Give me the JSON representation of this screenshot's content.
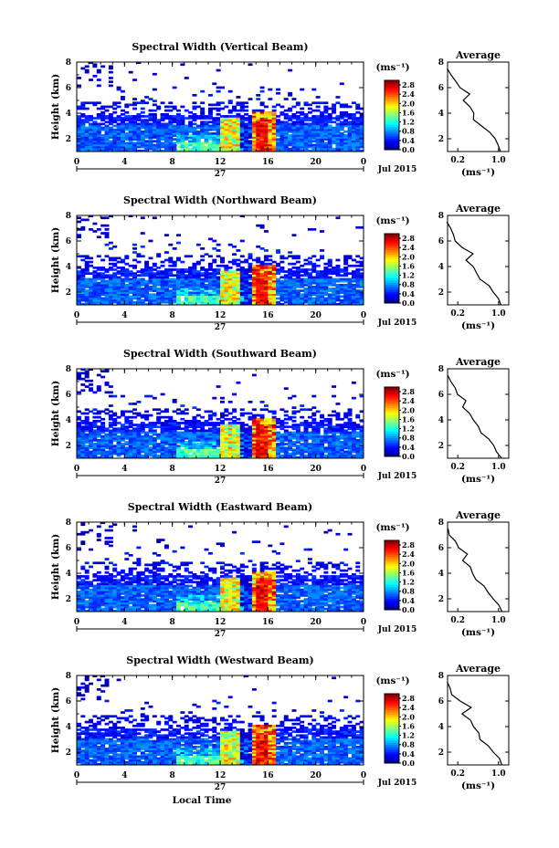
{
  "chart_data": [
    {
      "type": "heatmap",
      "title": "Spectral Width (Vertical Beam)",
      "ylabel": "Height (km)",
      "xlim": [
        0,
        24
      ],
      "ylim": [
        1,
        8
      ],
      "x_ticks": [
        "0",
        "4",
        "8",
        "12",
        "16",
        "20",
        "0"
      ],
      "y_ticks": [
        "2",
        "4",
        "6",
        "8"
      ],
      "date_label": "27",
      "month_label": "Jul 2015",
      "colorbar": {
        "unit": "(ms⁻¹)",
        "ticks": [
          "0.0",
          "0.4",
          "0.8",
          "1.2",
          "1.6",
          "2.0",
          "2.4",
          "2.8"
        ],
        "range": [
          0,
          3
        ]
      },
      "profile": {
        "title": "Average",
        "xlabel": "(ms⁻¹)",
        "x_ticks": [
          "0.2",
          "1.0"
        ],
        "y_ticks": [
          "2",
          "4",
          "6",
          "8"
        ],
        "xlim": [
          0,
          1.2
        ],
        "ylim": [
          1,
          8
        ],
        "heights": [
          1.0,
          1.5,
          2.0,
          2.5,
          3.0,
          3.5,
          4.0,
          4.5,
          5.0,
          5.5,
          6.0,
          6.5,
          7.0,
          7.5
        ],
        "values": [
          1.05,
          1.0,
          0.95,
          0.85,
          0.65,
          0.5,
          0.5,
          0.45,
          0.3,
          0.45,
          0.25,
          0.15,
          0.05,
          0.0
        ]
      }
    },
    {
      "type": "heatmap",
      "title": "Spectral Width (Northward Beam)",
      "ylabel": "Height (km)",
      "xlim": [
        0,
        24
      ],
      "ylim": [
        1,
        8
      ],
      "x_ticks": [
        "0",
        "4",
        "8",
        "12",
        "16",
        "20",
        "0"
      ],
      "y_ticks": [
        "2",
        "4",
        "6",
        "8"
      ],
      "date_label": "27",
      "month_label": "Jul 2015",
      "colorbar": {
        "unit": "(ms⁻¹)",
        "ticks": [
          "0.0",
          "0.4",
          "0.8",
          "1.2",
          "1.6",
          "2.0",
          "2.4",
          "2.8"
        ],
        "range": [
          0,
          3
        ]
      },
      "profile": {
        "title": "Average",
        "xlabel": "(ms⁻¹)",
        "x_ticks": [
          "0.2",
          "1.0"
        ],
        "y_ticks": [
          "2",
          "4",
          "6",
          "8"
        ],
        "xlim": [
          0,
          1.2
        ],
        "ylim": [
          1,
          8
        ],
        "heights": [
          1.0,
          1.5,
          2.0,
          2.5,
          3.0,
          3.5,
          4.0,
          4.5,
          5.0,
          5.5,
          6.0,
          6.5,
          7.0,
          7.5
        ],
        "values": [
          1.05,
          1.0,
          0.9,
          0.8,
          0.65,
          0.55,
          0.5,
          0.35,
          0.5,
          0.3,
          0.15,
          0.1,
          0.05,
          0.0
        ]
      }
    },
    {
      "type": "heatmap",
      "title": "Spectral Width (Southward Beam)",
      "ylabel": "Height (km)",
      "xlim": [
        0,
        24
      ],
      "ylim": [
        1,
        8
      ],
      "x_ticks": [
        "0",
        "4",
        "8",
        "12",
        "16",
        "20",
        "0"
      ],
      "y_ticks": [
        "2",
        "4",
        "6",
        "8"
      ],
      "date_label": "27",
      "month_label": "Jul 2015",
      "colorbar": {
        "unit": "(ms⁻¹)",
        "ticks": [
          "0.0",
          "0.4",
          "0.8",
          "1.2",
          "1.6",
          "2.0",
          "2.4",
          "2.8"
        ],
        "range": [
          0,
          3
        ]
      },
      "profile": {
        "title": "Average",
        "xlabel": "(ms⁻¹)",
        "x_ticks": [
          "0.2",
          "1.0"
        ],
        "y_ticks": [
          "2",
          "4",
          "6",
          "8"
        ],
        "xlim": [
          0,
          1.2
        ],
        "ylim": [
          1,
          8
        ],
        "heights": [
          1.0,
          1.5,
          2.0,
          2.5,
          3.0,
          3.5,
          4.0,
          4.5,
          5.0,
          5.5,
          6.0,
          6.5,
          7.0,
          7.5
        ],
        "values": [
          1.05,
          0.95,
          0.9,
          0.8,
          0.65,
          0.6,
          0.5,
          0.45,
          0.3,
          0.35,
          0.2,
          0.15,
          0.05,
          0.0
        ]
      }
    },
    {
      "type": "heatmap",
      "title": "Spectral Width (Eastward Beam)",
      "ylabel": "Height (km)",
      "xlim": [
        0,
        24
      ],
      "ylim": [
        1,
        8
      ],
      "x_ticks": [
        "0",
        "4",
        "8",
        "12",
        "16",
        "20",
        "0"
      ],
      "y_ticks": [
        "2",
        "4",
        "6",
        "8"
      ],
      "date_label": "27",
      "month_label": "Jul 2015",
      "colorbar": {
        "unit": "(ms⁻¹)",
        "ticks": [
          "0.0",
          "0.4",
          "0.8",
          "1.2",
          "1.6",
          "2.0",
          "2.4",
          "2.8"
        ],
        "range": [
          0,
          3
        ]
      },
      "profile": {
        "title": "Average",
        "xlabel": "(ms⁻¹)",
        "x_ticks": [
          "0.2",
          "1.0"
        ],
        "y_ticks": [
          "2",
          "4",
          "6",
          "8"
        ],
        "xlim": [
          0,
          1.2
        ],
        "ylim": [
          1,
          8
        ],
        "heights": [
          1.0,
          1.5,
          2.0,
          2.5,
          3.0,
          3.5,
          4.0,
          4.5,
          5.0,
          5.5,
          6.0,
          6.5,
          7.0,
          7.5
        ],
        "values": [
          1.05,
          1.0,
          0.9,
          0.8,
          0.7,
          0.55,
          0.5,
          0.45,
          0.3,
          0.4,
          0.2,
          0.15,
          0.05,
          0.0
        ]
      }
    },
    {
      "type": "heatmap",
      "title": "Spectral Width (Westward Beam)",
      "ylabel": "Height (km)",
      "xlabel": "Local Time",
      "xlim": [
        0,
        24
      ],
      "ylim": [
        1,
        8
      ],
      "x_ticks": [
        "0",
        "4",
        "8",
        "12",
        "16",
        "20",
        "0"
      ],
      "y_ticks": [
        "2",
        "4",
        "6",
        "8"
      ],
      "date_label": "27",
      "month_label": "Jul 2015",
      "colorbar": {
        "unit": "(ms⁻¹)",
        "ticks": [
          "0.0",
          "0.4",
          "0.8",
          "1.2",
          "1.6",
          "2.0",
          "2.4",
          "2.8"
        ],
        "range": [
          0,
          3
        ]
      },
      "profile": {
        "title": "Average",
        "xlabel": "(ms⁻¹)",
        "x_ticks": [
          "0.2",
          "1.0"
        ],
        "y_ticks": [
          "2",
          "4",
          "6",
          "8"
        ],
        "xlim": [
          0,
          1.2
        ],
        "ylim": [
          1,
          8
        ],
        "heights": [
          1.0,
          1.5,
          2.0,
          2.5,
          3.0,
          3.5,
          4.0,
          4.5,
          5.0,
          5.5,
          6.0,
          6.5,
          7.0,
          7.5
        ],
        "values": [
          1.05,
          1.0,
          0.9,
          0.8,
          0.65,
          0.6,
          0.5,
          0.45,
          0.3,
          0.45,
          0.25,
          0.1,
          0.05,
          0.0
        ]
      }
    }
  ]
}
